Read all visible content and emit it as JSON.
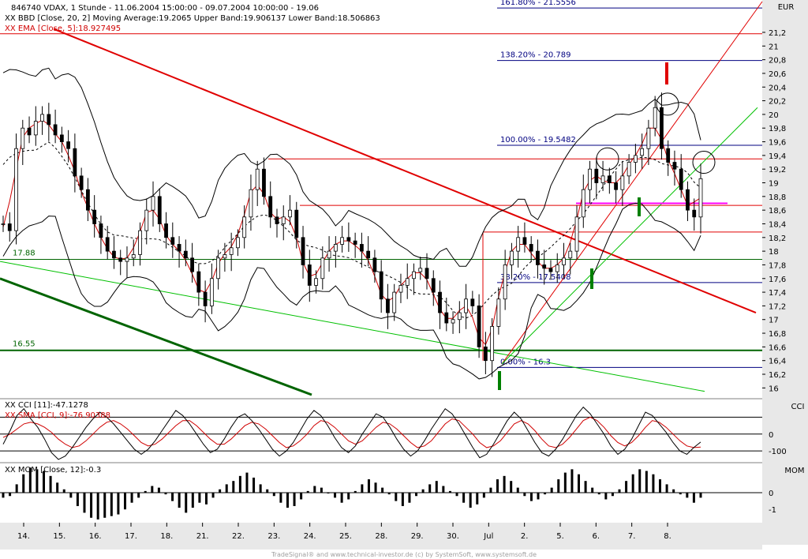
{
  "header": {
    "title": "846740 VDAX, 1 Stunde - 11.06.2004 15:00:00 - 09.07.2004 10:00:00 - 19.06",
    "line2": "XX BBD [Close, 20, 2] Moving Average:19.2065 Upper Band:19.906137 Lower Band:18.506863",
    "line3": "XX EMA [Close, 5]:18.927495"
  },
  "axis_label": "EUR",
  "cci_label": "CCI",
  "mom_label": "MOM",
  "footer": "TradeSignal® and www.technical-investor.de (c) by SystemSoft, www.systemsoft.de",
  "colors": {
    "price_axis_bg": "#e8e8e8",
    "fib_line": "#000080",
    "trend_red": "#e00000",
    "trend_green_light": "#00c000",
    "trend_green_dark": "#006400",
    "support_pink": "#ff00ff",
    "ema_red": "#d00000"
  },
  "chart_data": [
    {
      "type": "candlestick",
      "panel": "price",
      "title": "846740 VDAX, 1 Stunde - 11.06.2004 15:00:00 - 09.07.2004 10:00:00 - 19.06",
      "ylabel": "EUR",
      "ylim": [
        15.9,
        21.65
      ],
      "yticks": [
        16,
        16.2,
        16.4,
        16.6,
        16.8,
        17,
        17.2,
        17.4,
        17.6,
        17.8,
        18,
        18.2,
        18.4,
        18.6,
        18.8,
        19,
        19.2,
        19.4,
        19.6,
        19.8,
        20,
        20.2,
        20.4,
        20.6,
        20.8,
        21,
        21.2
      ],
      "ytick_labels": [
        "16",
        "16,2",
        "16,4",
        "16,6",
        "16,8",
        "17",
        "17,2",
        "17,4",
        "17,6",
        "17,8",
        "18",
        "18,2",
        "18,4",
        "18,6",
        "18,8",
        "19",
        "19,2",
        "19,4",
        "19,6",
        "19,8",
        "20",
        "20,2",
        "20,4",
        "20,6",
        "20,8",
        "21",
        "21,2"
      ],
      "x_labels": [
        "14.",
        "15.",
        "16.",
        "17.",
        "18.",
        "21.",
        "22.",
        "23.",
        "24.",
        "25.",
        "28.",
        "29.",
        "30.",
        "Jul",
        "2.",
        "5.",
        "6.",
        "7.",
        "8."
      ],
      "grid": false,
      "fibonacci": [
        {
          "label": "161.80% - 21.5556",
          "value": 21.5556
        },
        {
          "label": "138.20% - 20.789",
          "value": 20.789
        },
        {
          "label": "100.00% - 19.5482",
          "value": 19.5482
        },
        {
          "label": "38.20% - 17.5408",
          "value": 17.5408
        },
        {
          "label": "0.00% - 16.3",
          "value": 16.3
        }
      ],
      "horizontal_levels": [
        {
          "label": "17.88",
          "value": 17.88
        },
        {
          "label": "16.55",
          "value": 16.55
        }
      ],
      "last_close": 19.06,
      "bollinger": {
        "moving_average": 19.2065,
        "upper_band": 19.906137,
        "lower_band": 18.506863
      },
      "ema_last": 18.927495,
      "closes": [
        18.4,
        18.3,
        19.5,
        19.8,
        19.7,
        19.9,
        20.0,
        19.85,
        19.7,
        19.6,
        19.5,
        19.1,
        18.9,
        18.6,
        18.4,
        18.2,
        18.0,
        17.9,
        17.85,
        17.9,
        17.95,
        18.3,
        18.6,
        18.8,
        18.4,
        18.2,
        18.1,
        18.0,
        17.9,
        17.7,
        17.4,
        17.2,
        17.6,
        17.9,
        17.95,
        18.05,
        18.2,
        18.5,
        18.9,
        19.2,
        18.8,
        18.5,
        18.4,
        18.5,
        18.6,
        18.2,
        17.8,
        17.5,
        17.6,
        17.9,
        18.0,
        18.1,
        18.2,
        18.15,
        18.1,
        18.0,
        17.9,
        17.7,
        17.3,
        17.1,
        17.4,
        17.5,
        17.6,
        17.7,
        17.75,
        17.6,
        17.4,
        17.1,
        16.95,
        17.0,
        17.1,
        17.3,
        17.2,
        16.6,
        16.4,
        16.9,
        17.3,
        17.8,
        18.0,
        18.2,
        18.1,
        18.0,
        17.8,
        17.75,
        17.7,
        17.8,
        17.9,
        18.0,
        18.5,
        18.9,
        19.2,
        19.0,
        19.1,
        19.0,
        18.9,
        19.1,
        19.3,
        19.4,
        19.5,
        19.8,
        20.1,
        19.5,
        19.3,
        19.2,
        18.9,
        18.6,
        18.5,
        19.06
      ]
    },
    {
      "type": "line",
      "panel": "cci",
      "title": "XX CCI [11]:-47.1278",
      "subtitle": "XX SMA [CCI, 9]:-76.90388",
      "ylabel": "CCI",
      "ylim": [
        -160,
        200
      ],
      "yticks": [
        0,
        -100
      ],
      "ytick_labels": [
        "0",
        "-100"
      ],
      "series": [
        {
          "name": "XX CCI [11]:-47.1278",
          "last": -47.1278,
          "values": [
            -60,
            20,
            110,
            150,
            90,
            40,
            -30,
            -110,
            -150,
            -130,
            -80,
            -20,
            40,
            90,
            130,
            100,
            60,
            10,
            -40,
            -90,
            -120,
            -90,
            -40,
            20,
            80,
            140,
            110,
            60,
            0,
            -60,
            -110,
            -90,
            -30,
            40,
            100,
            120,
            80,
            30,
            -30,
            -90,
            -130,
            -100,
            -50,
            20,
            90,
            140,
            110,
            50,
            -20,
            -80,
            -110,
            -70,
            0,
            60,
            120,
            100,
            40,
            -30,
            -90,
            -130,
            -100,
            -40,
            30,
            90,
            150,
            120,
            60,
            -10,
            -80,
            -140,
            -120,
            -60,
            10,
            80,
            130,
            90,
            20,
            -50,
            -110,
            -130,
            -90,
            -30,
            40,
            110,
            160,
            120,
            60,
            0,
            -70,
            -120,
            -90,
            -30,
            50,
            130,
            110,
            60,
            10,
            -50,
            -100,
            -120,
            -80,
            -47.1278
          ]
        },
        {
          "name": "XX SMA [CCI, 9]:-76.90388",
          "last": -76.90388,
          "values": [
            -20,
            0,
            30,
            60,
            70,
            60,
            40,
            10,
            -30,
            -60,
            -80,
            -70,
            -40,
            0,
            40,
            70,
            80,
            60,
            30,
            -10,
            -50,
            -70,
            -60,
            -30,
            10,
            50,
            80,
            80,
            50,
            10,
            -30,
            -60,
            -60,
            -30,
            10,
            50,
            70,
            60,
            30,
            -10,
            -50,
            -80,
            -70,
            -40,
            0,
            50,
            80,
            70,
            40,
            0,
            -40,
            -60,
            -40,
            0,
            40,
            70,
            60,
            30,
            -10,
            -50,
            -80,
            -70,
            -40,
            10,
            60,
            90,
            80,
            40,
            0,
            -50,
            -80,
            -70,
            -40,
            10,
            60,
            80,
            60,
            20,
            -30,
            -70,
            -80,
            -60,
            -20,
            30,
            80,
            100,
            80,
            40,
            -10,
            -50,
            -70,
            -50,
            -10,
            40,
            80,
            70,
            40,
            0,
            -40,
            -70,
            -80,
            -76.90388
          ]
        }
      ]
    },
    {
      "type": "bar",
      "panel": "mom",
      "title": "XX MOM [Close, 12]:-0.3",
      "ylabel": "MOM",
      "ylim": [
        -1.7,
        1.7
      ],
      "yticks": [
        0,
        -1
      ],
      "ytick_labels": [
        "0",
        "-1"
      ],
      "last": -0.3,
      "values": [
        -0.3,
        -0.2,
        0.5,
        1.1,
        1.5,
        1.4,
        1.3,
        1.0,
        0.6,
        0.2,
        -0.3,
        -0.8,
        -1.2,
        -1.5,
        -1.6,
        -1.5,
        -1.4,
        -1.3,
        -1.0,
        -0.6,
        -0.3,
        0.1,
        0.4,
        0.3,
        -0.1,
        -0.5,
        -0.9,
        -1.2,
        -0.9,
        -0.6,
        -0.7,
        -0.3,
        0.2,
        0.5,
        0.7,
        1.0,
        1.2,
        0.9,
        0.5,
        0.2,
        -0.2,
        -0.6,
        -0.9,
        -0.8,
        -0.4,
        0.1,
        0.4,
        0.3,
        0.0,
        -0.3,
        -0.6,
        -0.4,
        0.1,
        0.5,
        0.8,
        0.6,
        0.3,
        -0.1,
        -0.5,
        -0.8,
        -0.6,
        -0.2,
        0.2,
        0.5,
        0.7,
        0.4,
        0.1,
        -0.2,
        -0.6,
        -0.9,
        -0.7,
        -0.3,
        0.3,
        0.8,
        1.0,
        0.7,
        0.3,
        -0.2,
        -0.5,
        -0.4,
        -0.1,
        0.3,
        0.8,
        1.2,
        1.4,
        1.1,
        0.7,
        0.3,
        -0.1,
        -0.4,
        -0.2,
        0.2,
        0.7,
        1.1,
        1.4,
        1.3,
        1.1,
        0.8,
        0.5,
        0.2,
        -0.1,
        -0.3,
        -0.6,
        -0.3
      ]
    }
  ]
}
